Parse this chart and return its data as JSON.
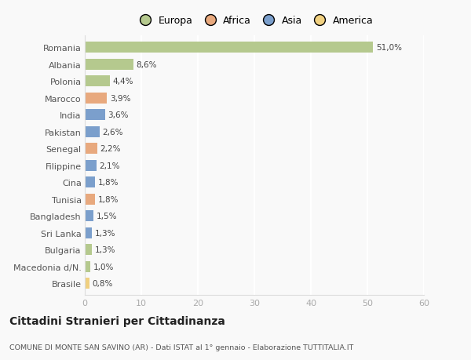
{
  "countries": [
    "Romania",
    "Albania",
    "Polonia",
    "Marocco",
    "India",
    "Pakistan",
    "Senegal",
    "Filippine",
    "Cina",
    "Tunisia",
    "Bangladesh",
    "Sri Lanka",
    "Bulgaria",
    "Macedonia d/N.",
    "Brasile"
  ],
  "values": [
    51.0,
    8.6,
    4.4,
    3.9,
    3.6,
    2.6,
    2.2,
    2.1,
    1.8,
    1.8,
    1.5,
    1.3,
    1.3,
    1.0,
    0.8
  ],
  "labels": [
    "51,0%",
    "8,6%",
    "4,4%",
    "3,9%",
    "3,6%",
    "2,6%",
    "2,2%",
    "2,1%",
    "1,8%",
    "1,8%",
    "1,5%",
    "1,3%",
    "1,3%",
    "1,0%",
    "0,8%"
  ],
  "continents": [
    "Europa",
    "Europa",
    "Europa",
    "Africa",
    "Asia",
    "Asia",
    "Africa",
    "Asia",
    "Asia",
    "Africa",
    "Asia",
    "Asia",
    "Europa",
    "Europa",
    "America"
  ],
  "continent_colors": {
    "Europa": "#b5c98e",
    "Africa": "#e8a97e",
    "Asia": "#7b9fcc",
    "America": "#f0d080"
  },
  "legend_labels": [
    "Europa",
    "Africa",
    "Asia",
    "America"
  ],
  "legend_colors": [
    "#b5c98e",
    "#e8a97e",
    "#7b9fcc",
    "#f0d080"
  ],
  "title": "Cittadini Stranieri per Cittadinanza",
  "subtitle": "COMUNE DI MONTE SAN SAVINO (AR) - Dati ISTAT al 1° gennaio - Elaborazione TUTTITALIA.IT",
  "xlim": [
    0,
    60
  ],
  "xticks": [
    0,
    10,
    20,
    30,
    40,
    50,
    60
  ],
  "background_color": "#f9f9f9",
  "grid_color": "#ffffff",
  "bar_height": 0.65
}
